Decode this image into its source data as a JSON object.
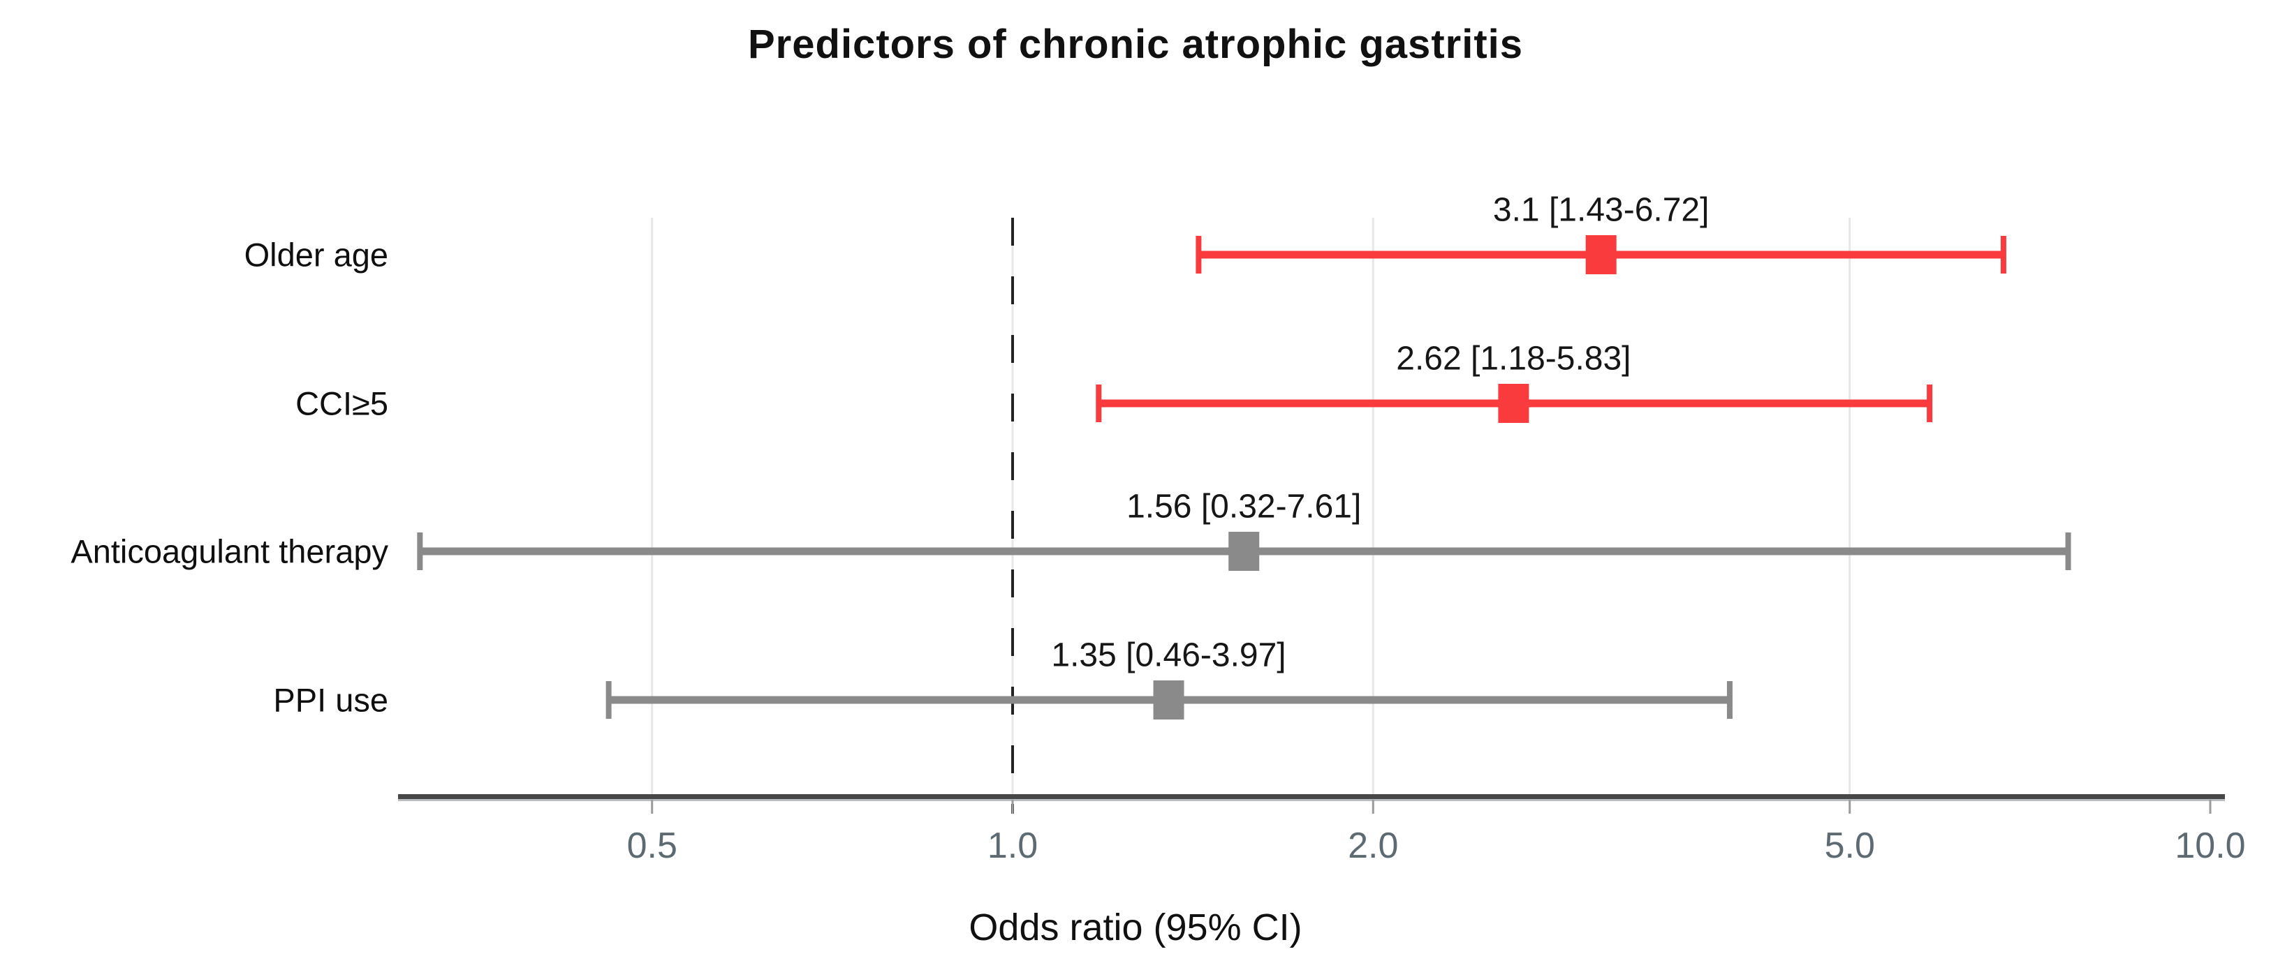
{
  "chart_data": {
    "type": "scatter",
    "subtype": "forest-plot",
    "title": "Predictors of chronic atrophic gastritis",
    "xlabel": "Odds ratio (95% CI)",
    "x_scale": "log",
    "x_range": [
      0.305,
      10.3
    ],
    "reference_line": 1.0,
    "grid": "vertical-light",
    "legend": "none",
    "x_ticks": [
      {
        "value": 0.5,
        "label": "0.5"
      },
      {
        "value": 1.0,
        "label": "1.0"
      },
      {
        "value": 2.0,
        "label": "2.0"
      },
      {
        "value": 5.0,
        "label": "5.0"
      },
      {
        "value": 10.0,
        "label": "10.0"
      }
    ],
    "rows": [
      {
        "category": "Older age",
        "or": 3.1,
        "ci_low": 1.43,
        "ci_high": 6.72,
        "annotation": "3.1 [1.43-6.72]",
        "significant": true,
        "color": "#f93b3e"
      },
      {
        "category": "CCI≥5",
        "or": 2.62,
        "ci_low": 1.18,
        "ci_high": 5.83,
        "annotation": "2.62 [1.18-5.83]",
        "significant": true,
        "color": "#f93b3e"
      },
      {
        "category": "Anticoagulant therapy",
        "or": 1.56,
        "ci_low": 0.32,
        "ci_high": 7.61,
        "annotation": "1.56 [0.32-7.61]",
        "significant": false,
        "color": "#8a8a8a"
      },
      {
        "category": "PPI use",
        "or": 1.35,
        "ci_low": 0.46,
        "ci_high": 3.97,
        "annotation": "1.35 [0.46-3.97]",
        "significant": false,
        "color": "#8a8a8a"
      }
    ],
    "colors": {
      "significant": "#f93b3e",
      "non_significant": "#8a8a8a",
      "axis_line": "#474747",
      "axis_shadow": "#b9bec0",
      "gridline": "#e7e7e7",
      "reference_dash": "#222222",
      "tick": "#9b9b9b",
      "tick_label": "#5d6a72"
    }
  }
}
